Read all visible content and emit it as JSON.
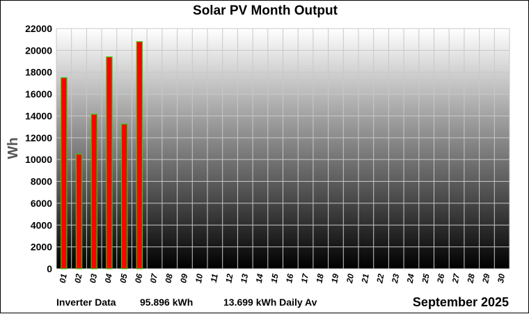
{
  "chart_data": {
    "type": "bar",
    "title": "Solar PV Month Output",
    "xlabel": "",
    "ylabel": "Wh",
    "ylim": [
      0,
      22000
    ],
    "yticks": [
      0,
      2000,
      4000,
      6000,
      8000,
      10000,
      12000,
      14000,
      16000,
      18000,
      20000,
      22000
    ],
    "categories": [
      "01",
      "02",
      "03",
      "04",
      "05",
      "06",
      "07",
      "08",
      "09",
      "10",
      "11",
      "12",
      "13",
      "14",
      "15",
      "16",
      "17",
      "18",
      "19",
      "20",
      "21",
      "22",
      "23",
      "24",
      "25",
      "26",
      "27",
      "28",
      "29",
      "30"
    ],
    "values": [
      17500,
      10500,
      14150,
      19400,
      13250,
      20800,
      null,
      null,
      null,
      null,
      null,
      null,
      null,
      null,
      null,
      null,
      null,
      null,
      null,
      null,
      null,
      null,
      null,
      null,
      null,
      null,
      null,
      null,
      null,
      null
    ],
    "grid": true,
    "legend": "none"
  },
  "footer": {
    "source": "Inverter Data",
    "total": "95.896 kWh",
    "daily_avg": "13.699 kWh  Daily Av",
    "period": "September 2025"
  },
  "colors": {
    "bar_fill": "#ff0000",
    "bar_edge": "#33cc00",
    "gradient_top": "#ffffff",
    "gradient_bottom": "#000000",
    "grid": "#c8c8c8"
  }
}
